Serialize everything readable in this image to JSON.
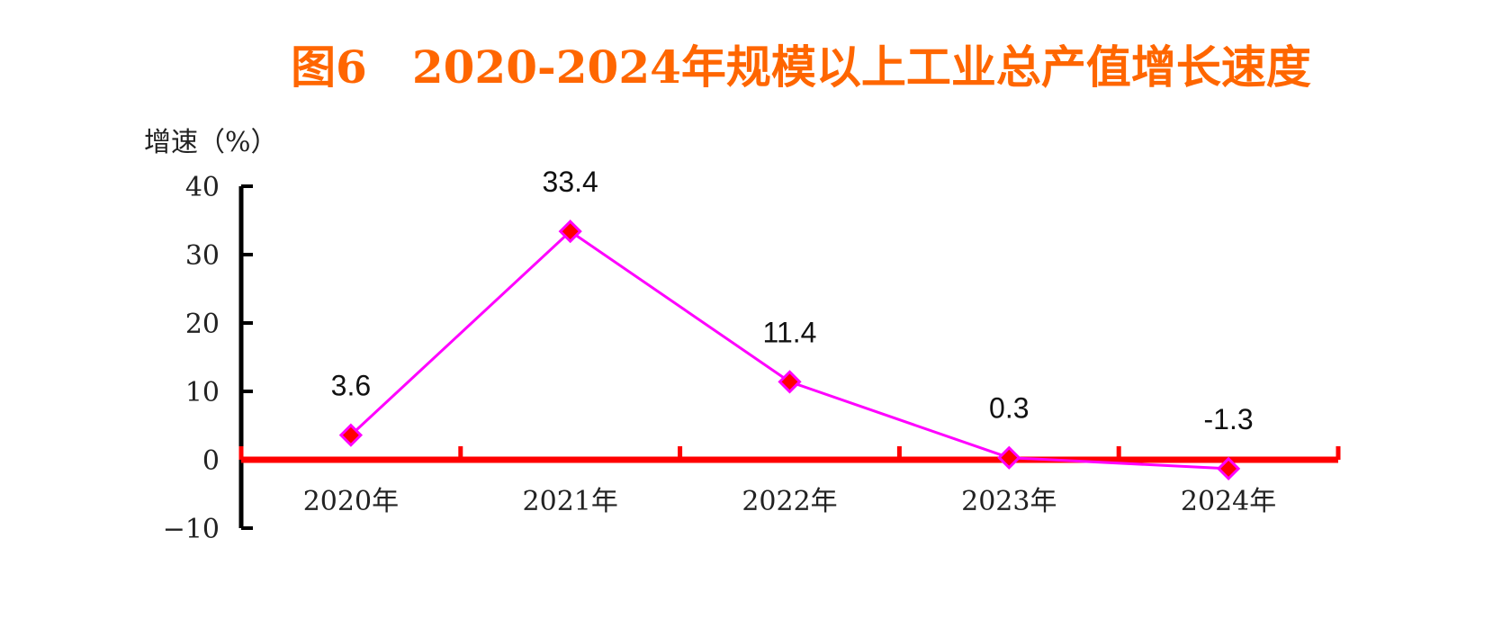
{
  "chart_data": {
    "type": "line",
    "title": "图6　2020-2024年规模以上工业总产值增长速度",
    "ylabel": "增速（%）",
    "xlabel": "",
    "categories": [
      "2020年",
      "2021年",
      "2022年",
      "2023年",
      "2024年"
    ],
    "series": [
      {
        "values": [
          3.6,
          33.4,
          11.4,
          0.3,
          -1.3
        ],
        "data_labels": [
          "3.6",
          "33.4",
          "11.4",
          "0.3",
          "-1.3"
        ],
        "color": "#ff00ff",
        "marker": "diamond",
        "marker_color": "#ff0000"
      }
    ],
    "ylim": [
      -10,
      40
    ],
    "yticks": [
      40,
      30,
      20,
      10,
      0,
      -10
    ],
    "ytick_labels": [
      "40",
      "30",
      "20",
      "10",
      "0",
      "−10"
    ],
    "grid": false,
    "legend": "none"
  },
  "colors": {
    "title": "#ff6600",
    "zero_axis": "#ff0000",
    "y_axis": "#000000",
    "line": "#ff00ff",
    "marker": "#ff0000"
  }
}
